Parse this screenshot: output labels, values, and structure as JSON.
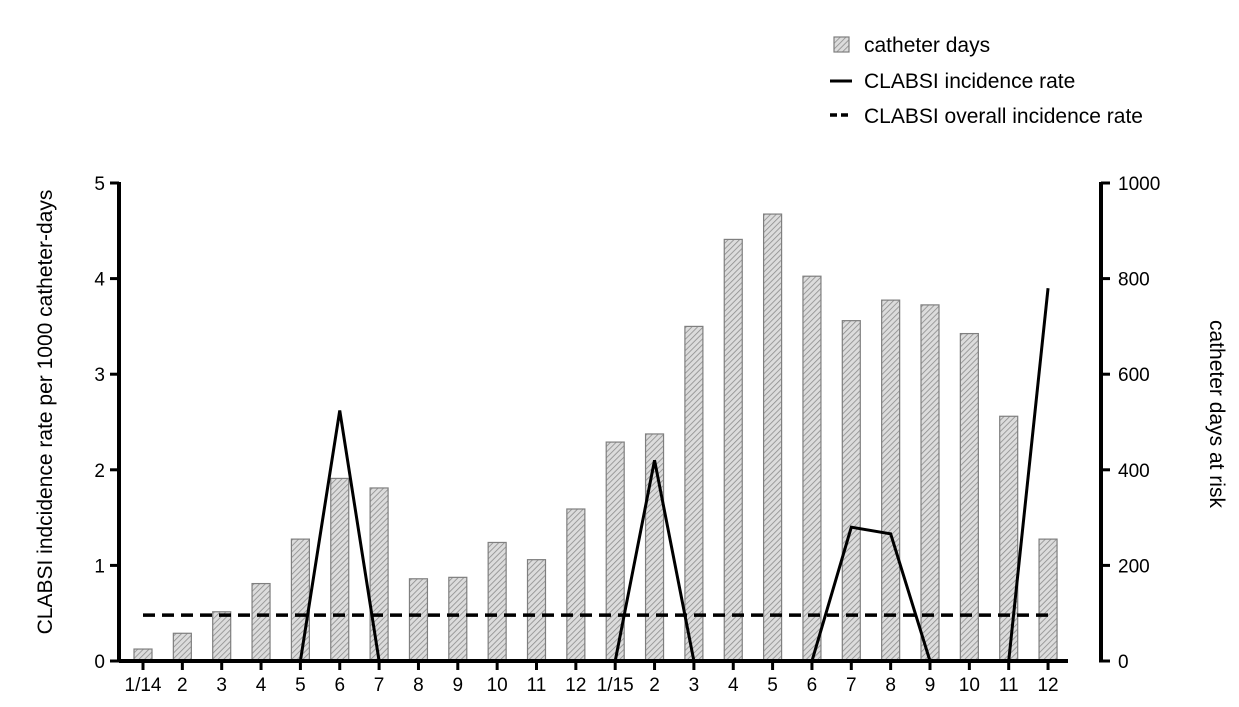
{
  "chart_data": {
    "type": "bar",
    "categories": [
      "1/14",
      "2",
      "3",
      "4",
      "5",
      "6",
      "7",
      "8",
      "9",
      "10",
      "11",
      "12",
      "1/15",
      "2",
      "3",
      "4",
      "5",
      "6",
      "7",
      "8",
      "9",
      "10",
      "11",
      "12"
    ],
    "series": [
      {
        "name": "catheter days",
        "type": "bar",
        "axis": "right",
        "values": [
          25,
          58,
          103,
          162,
          255,
          382,
          362,
          172,
          175,
          248,
          212,
          318,
          458,
          475,
          700,
          882,
          935,
          805,
          712,
          755,
          745,
          685,
          512,
          255
        ]
      },
      {
        "name": "CLABSI incidence rate",
        "type": "line",
        "axis": "left",
        "values": [
          null,
          null,
          null,
          null,
          0,
          2.62,
          0,
          null,
          null,
          null,
          null,
          null,
          0,
          2.1,
          0,
          null,
          null,
          0,
          1.4,
          1.33,
          0,
          null,
          0,
          3.9
        ]
      },
      {
        "name": "CLABSI overall incidence rate",
        "type": "line",
        "style": "dashed",
        "axis": "left",
        "values": [
          0.48,
          0.48,
          0.48,
          0.48,
          0.48,
          0.48,
          0.48,
          0.48,
          0.48,
          0.48,
          0.48,
          0.48,
          0.48,
          0.48,
          0.48,
          0.48,
          0.48,
          0.48,
          0.48,
          0.48,
          0.48,
          0.48,
          0.48,
          0.48
        ]
      }
    ],
    "ylabel": "CLABSI indcidence rate per 1000 catheter-days",
    "ylabel_right": "catheter days at risk",
    "ylim": [
      0,
      5
    ],
    "ylim_right": [
      0,
      1000
    ],
    "yticks": [
      "0",
      "1",
      "2",
      "3",
      "4",
      "5"
    ],
    "yticks_right": [
      "0",
      "200",
      "400",
      "600",
      "800",
      "1000"
    ],
    "legend_position": "top-right",
    "grid": false,
    "colors": {
      "bar_fill": "#d9d9d9",
      "bar_hatch": "#8c8c8c",
      "bar_stroke": "#7f7f7f",
      "line": "#000000"
    }
  }
}
